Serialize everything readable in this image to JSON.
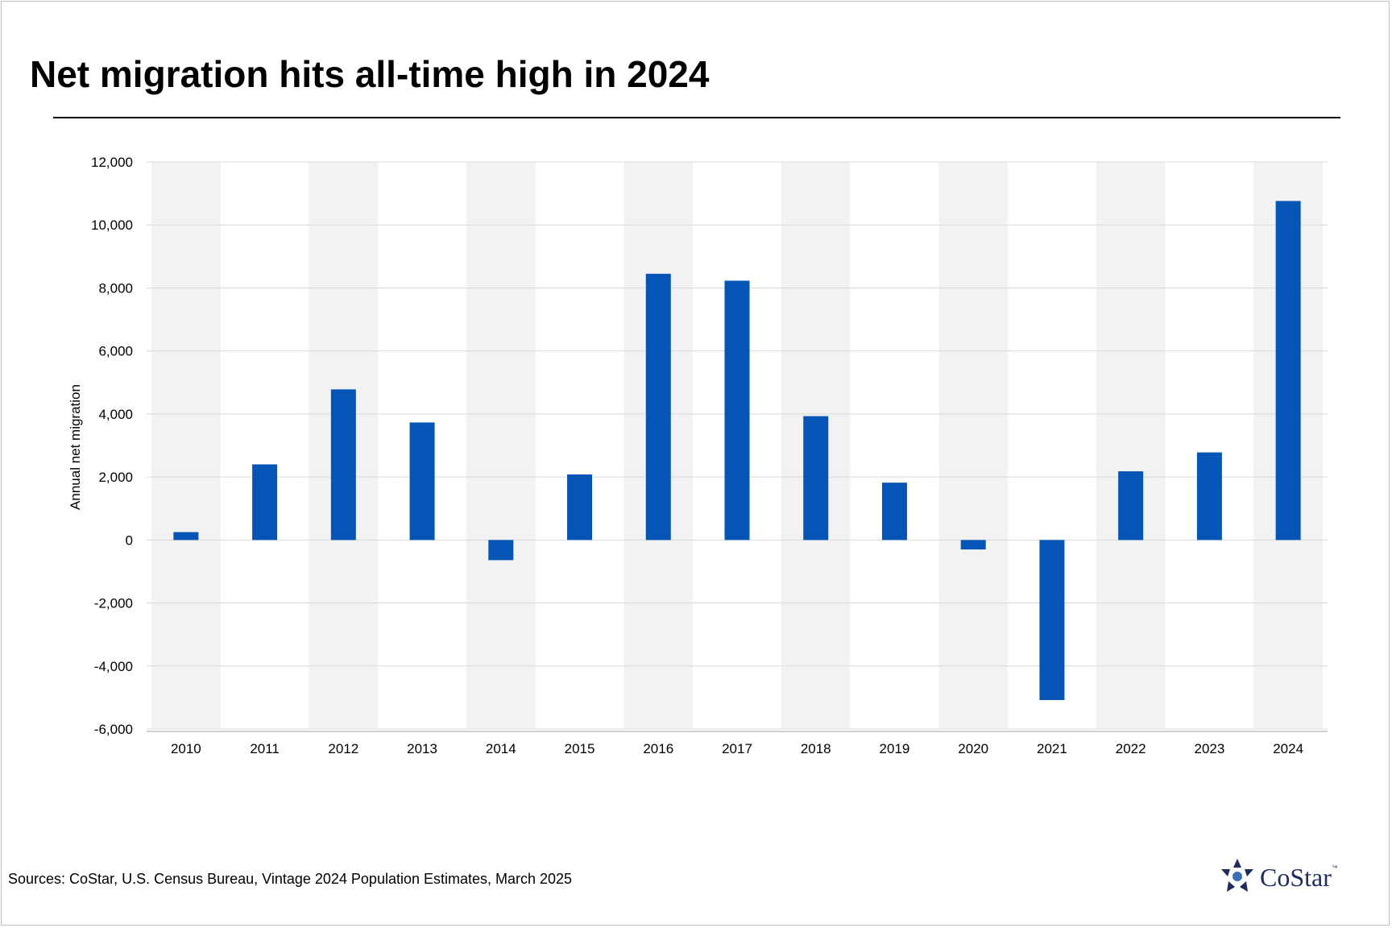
{
  "title": "Net migration hits all-time high in 2024",
  "source": "Sources: CoStar, U.S. Census Bureau, Vintage 2024 Population Estimates, March 2025",
  "logo": {
    "text": "CoStar",
    "tm": "™",
    "icon": "costar-star-icon"
  },
  "colors": {
    "bar": "#0455b5",
    "band": "#f2f2f2",
    "grid": "#d9d9d9",
    "axis": "#bfbfbf",
    "text": "#000000",
    "logo": "#1f2c5c"
  },
  "chart_data": {
    "type": "bar",
    "title": "Net migration hits all-time high in 2024",
    "xlabel": "",
    "ylabel": "Annual net migration",
    "categories": [
      "2010",
      "2011",
      "2012",
      "2013",
      "2014",
      "2015",
      "2016",
      "2017",
      "2018",
      "2019",
      "2020",
      "2021",
      "2022",
      "2023",
      "2024"
    ],
    "values": [
      250,
      2400,
      4780,
      3730,
      -640,
      2080,
      8450,
      8230,
      3930,
      1820,
      -300,
      -5080,
      2180,
      2780,
      10760
    ],
    "ylim": [
      -6000,
      12000
    ],
    "yticks": [
      12000,
      10000,
      8000,
      6000,
      4000,
      2000,
      0,
      -2000,
      -4000,
      -6000
    ],
    "ytick_labels": [
      "12,000",
      "10,000",
      "8,000",
      "6,000",
      "4,000",
      "2,000",
      "0",
      "-2,000",
      "-4,000",
      "-6,000"
    ],
    "grid": true,
    "alternating_bands": true
  }
}
